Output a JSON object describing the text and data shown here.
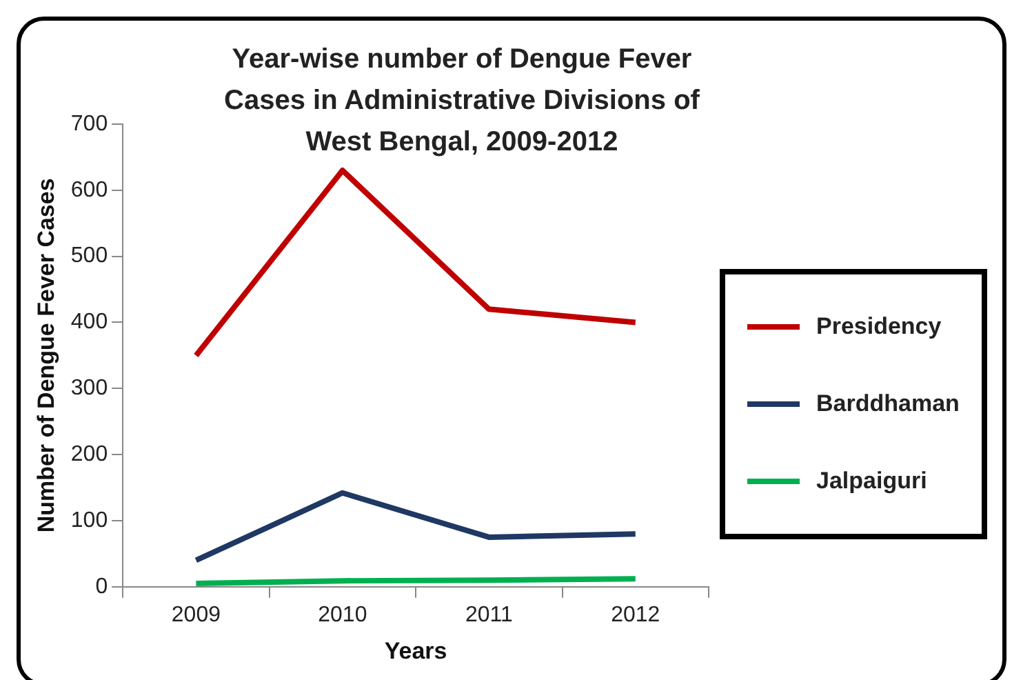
{
  "chart_data": {
    "type": "line",
    "title": "Year-wise number of Dengue Fever Cases in Administrative Divisions of West Bengal, 2009-2012",
    "xlabel": "Years",
    "ylabel": "Number of Dengue Fever Cases",
    "categories": [
      "2009",
      "2010",
      "2011",
      "2012"
    ],
    "series": [
      {
        "name": "Presidency",
        "color": "#c00000",
        "values": [
          350,
          630,
          420,
          400
        ]
      },
      {
        "name": "Barddhaman",
        "color": "#1f3864",
        "values": [
          40,
          142,
          75,
          80
        ]
      },
      {
        "name": "Jalpaiguri",
        "color": "#00b050",
        "values": [
          5,
          9,
          10,
          12
        ]
      }
    ],
    "ylim": [
      0,
      700
    ],
    "yticks": [
      0,
      100,
      200,
      300,
      400,
      500,
      600,
      700
    ],
    "grid": false,
    "legend": "right",
    "marker": "none",
    "line_style": "solid"
  }
}
